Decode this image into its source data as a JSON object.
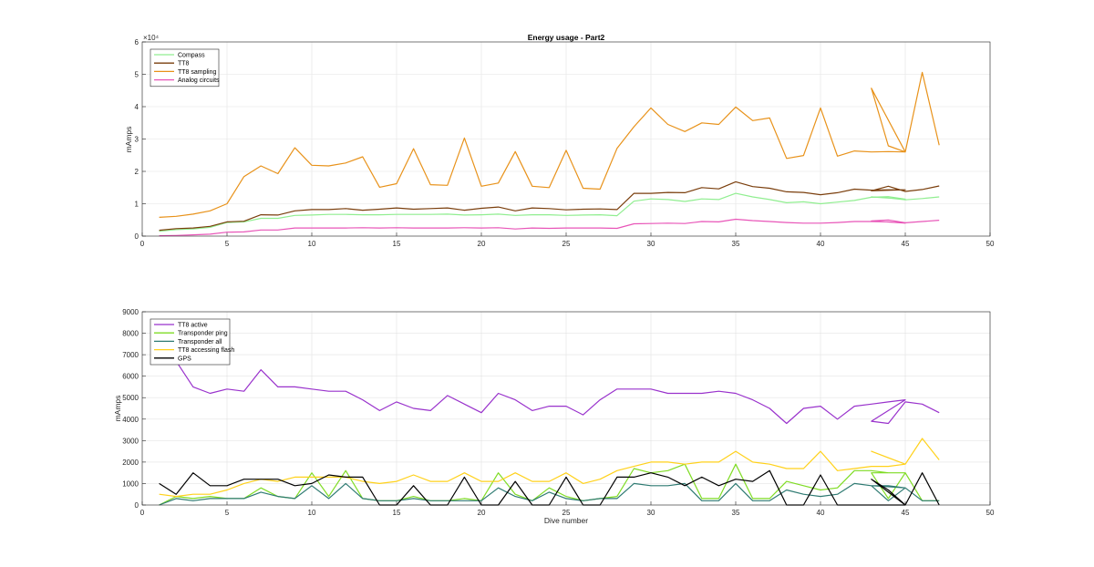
{
  "chart_data": [
    {
      "type": "line",
      "title": "Energy usage - Part2",
      "xlabel": "",
      "ylabel": "mAmps",
      "y_exponent_label": "×10⁴",
      "xlim": [
        0,
        50
      ],
      "ylim": [
        0,
        60000
      ],
      "xticks": [
        0,
        5,
        10,
        15,
        20,
        25,
        30,
        35,
        40,
        45,
        50
      ],
      "yticks": [
        0,
        10000,
        20000,
        30000,
        40000,
        50000,
        60000
      ],
      "ytick_labels": [
        "0",
        "1",
        "2",
        "3",
        "4",
        "5",
        "6"
      ],
      "grid": true,
      "legend_position": "top-left",
      "x": [
        1,
        2,
        3,
        4,
        5,
        6,
        7,
        8,
        9,
        10,
        11,
        12,
        13,
        14,
        15,
        16,
        17,
        18,
        19,
        20,
        21,
        22,
        23,
        24,
        25,
        26,
        27,
        28,
        29,
        30,
        31,
        32,
        33,
        34,
        35,
        36,
        37,
        38,
        39,
        40,
        41,
        42,
        43,
        44,
        45,
        43,
        44,
        45,
        46,
        47
      ],
      "series": [
        {
          "name": "Compass",
          "color": "#90ee90",
          "values": [
            1500,
            2000,
            2200,
            2700,
            4200,
            4400,
            5500,
            5500,
            6400,
            6500,
            6700,
            6700,
            6600,
            6600,
            6700,
            6700,
            6700,
            6800,
            6500,
            6600,
            6800,
            6400,
            6600,
            6600,
            6400,
            6500,
            6600,
            6300,
            10800,
            11500,
            11300,
            10700,
            11500,
            11300,
            13200,
            12100,
            11300,
            10300,
            10600,
            10000,
            10500,
            11000,
            12000,
            12200,
            11400,
            12100,
            11800,
            11200,
            11600,
            12100
          ]
        },
        {
          "name": "TT8",
          "color": "#7a3e0c",
          "values": [
            1800,
            2300,
            2500,
            3000,
            4400,
            4600,
            6600,
            6500,
            7800,
            8200,
            8200,
            8500,
            8000,
            8300,
            8700,
            8300,
            8500,
            8700,
            8000,
            8600,
            9000,
            7800,
            8700,
            8500,
            8100,
            8300,
            8400,
            8200,
            13200,
            13200,
            13500,
            13400,
            15000,
            14600,
            16800,
            15300,
            14800,
            13700,
            13500,
            12800,
            13400,
            14500,
            14200,
            14300,
            14300,
            14000,
            15400,
            13800,
            14400,
            15500
          ]
        },
        {
          "name": "TT8 sampling",
          "color": "#e8921a",
          "values": [
            5800,
            6100,
            6800,
            7800,
            10000,
            18400,
            21700,
            19300,
            27300,
            21900,
            21700,
            22600,
            24500,
            15100,
            16200,
            27000,
            15900,
            15700,
            30300,
            15400,
            16400,
            26100,
            15400,
            15000,
            26500,
            14800,
            14500,
            27100,
            33800,
            39600,
            34500,
            32300,
            35000,
            34500,
            39900,
            35700,
            36500,
            24000,
            24900,
            39600,
            24700,
            26300,
            26000,
            26100,
            26000,
            45700,
            27900,
            26000,
            50600,
            28100
          ]
        },
        {
          "name": "Analog circuits",
          "color": "#e855b8",
          "values": [
            100,
            200,
            400,
            600,
            1200,
            1300,
            1900,
            1900,
            2500,
            2500,
            2500,
            2500,
            2600,
            2500,
            2600,
            2500,
            2500,
            2500,
            2600,
            2500,
            2600,
            2200,
            2500,
            2400,
            2500,
            2500,
            2500,
            2400,
            3800,
            3900,
            4000,
            3900,
            4500,
            4400,
            5200,
            4800,
            4500,
            4200,
            4000,
            4000,
            4200,
            4500,
            4500,
            4400,
            4000,
            4700,
            5000,
            4100,
            4500,
            4900
          ]
        }
      ]
    },
    {
      "type": "line",
      "title": "",
      "xlabel": "Dive number",
      "ylabel": "mAmps",
      "xlim": [
        0,
        50
      ],
      "ylim": [
        0,
        9000
      ],
      "xticks": [
        0,
        5,
        10,
        15,
        20,
        25,
        30,
        35,
        40,
        45,
        50
      ],
      "yticks": [
        0,
        1000,
        2000,
        3000,
        4000,
        5000,
        6000,
        7000,
        8000,
        9000
      ],
      "ytick_labels": [
        "0",
        "1000",
        "2000",
        "3000",
        "4000",
        "5000",
        "6000",
        "7000",
        "8000",
        "9000"
      ],
      "grid": true,
      "legend_position": "top-left",
      "x": [
        1,
        2,
        3,
        4,
        5,
        6,
        7,
        8,
        9,
        10,
        11,
        12,
        13,
        14,
        15,
        16,
        17,
        18,
        19,
        20,
        21,
        22,
        23,
        24,
        25,
        26,
        27,
        28,
        29,
        30,
        31,
        32,
        33,
        34,
        35,
        36,
        37,
        38,
        39,
        40,
        41,
        42,
        43,
        44,
        45,
        43,
        44,
        45,
        46,
        47
      ],
      "series": [
        {
          "name": "TT8 active",
          "color": "#9932cc",
          "values": [
            7600,
            6700,
            5500,
            5200,
            5400,
            5300,
            6300,
            5500,
            5500,
            5400,
            5300,
            5300,
            4900,
            4400,
            4800,
            4500,
            4400,
            5100,
            4700,
            4300,
            5200,
            4900,
            4400,
            4600,
            4600,
            4200,
            4900,
            5400,
            5400,
            5400,
            5200,
            5200,
            5200,
            5300,
            5200,
            4900,
            4500,
            3800,
            4500,
            4600,
            4000,
            4600,
            4700,
            4800,
            4900,
            3900,
            3800,
            4800,
            4700,
            4300
          ]
        },
        {
          "name": "Transponder ping",
          "color": "#7fdc24",
          "values": [
            0,
            400,
            300,
            400,
            300,
            300,
            800,
            400,
            300,
            1500,
            400,
            1600,
            300,
            200,
            200,
            400,
            200,
            200,
            300,
            200,
            1500,
            500,
            200,
            800,
            400,
            200,
            300,
            400,
            1700,
            1500,
            1600,
            1900,
            300,
            300,
            1900,
            300,
            300,
            1100,
            900,
            700,
            800,
            1600,
            1600,
            1500,
            1500,
            1500,
            300,
            1500,
            200,
            200
          ]
        },
        {
          "name": "Transponder all",
          "color": "#2e7a72",
          "values": [
            0,
            300,
            200,
            300,
            300,
            300,
            600,
            400,
            300,
            900,
            300,
            1000,
            300,
            200,
            200,
            300,
            200,
            200,
            200,
            200,
            800,
            400,
            200,
            600,
            300,
            200,
            300,
            300,
            1000,
            900,
            900,
            1000,
            200,
            200,
            1000,
            200,
            200,
            700,
            500,
            400,
            500,
            1000,
            900,
            900,
            800,
            900,
            200,
            800,
            200,
            200
          ]
        },
        {
          "name": "TT8 accessing flash",
          "color": "#ffd11a",
          "values": [
            500,
            400,
            500,
            500,
            700,
            1000,
            1200,
            1100,
            1300,
            1300,
            1300,
            1300,
            1100,
            1000,
            1100,
            1400,
            1100,
            1100,
            1500,
            1100,
            1100,
            1500,
            1100,
            1100,
            1500,
            1000,
            1200,
            1600,
            1800,
            2000,
            2000,
            1900,
            2000,
            2000,
            2500,
            2000,
            1900,
            1700,
            1700,
            2500,
            1600,
            1700,
            1800,
            1800,
            1900,
            2500,
            2200,
            1900,
            3100,
            2100
          ]
        },
        {
          "name": "GPS",
          "color": "#000000",
          "values": [
            1000,
            500,
            1500,
            900,
            900,
            1200,
            1200,
            1200,
            900,
            1000,
            1400,
            1300,
            1300,
            0,
            0,
            900,
            0,
            0,
            1300,
            0,
            0,
            1100,
            0,
            0,
            1300,
            0,
            0,
            1300,
            1300,
            1500,
            1300,
            900,
            1300,
            900,
            1200,
            1100,
            1600,
            0,
            0,
            1400,
            0,
            0,
            0,
            0,
            0,
            1200,
            700,
            0,
            1500,
            0
          ]
        }
      ]
    }
  ]
}
